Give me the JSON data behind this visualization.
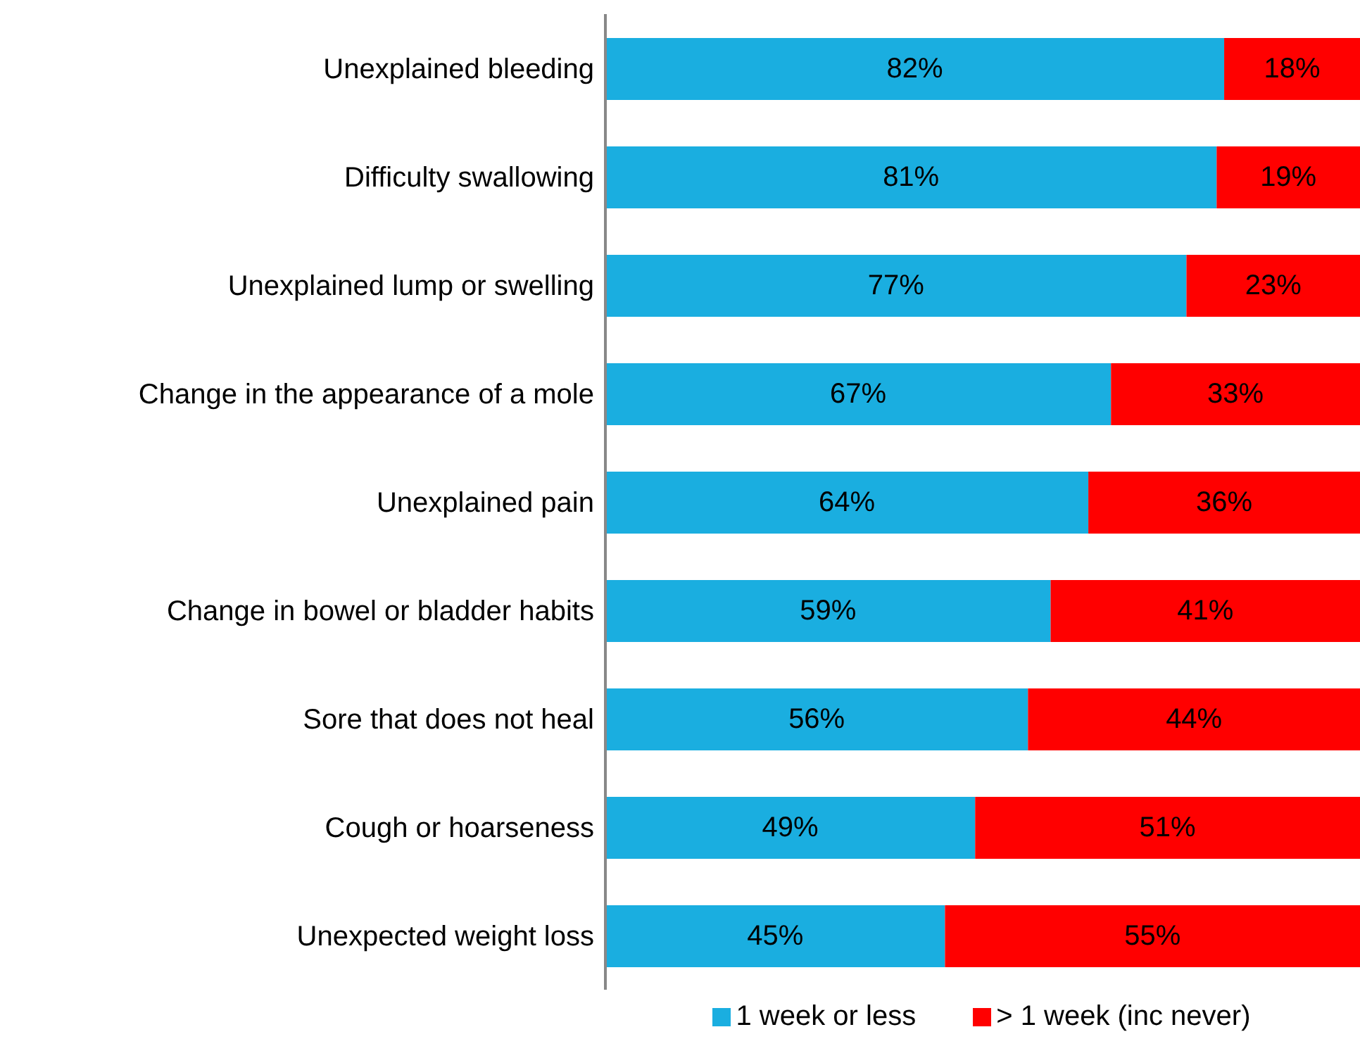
{
  "chart_data": {
    "type": "bar",
    "orientation": "horizontal",
    "stacked": true,
    "categories": [
      "Unexplained bleeding",
      "Difficulty swallowing",
      "Unexplained lump or swelling",
      "Change in the appearance  of a mole",
      "Unexplained pain",
      "Change in bowel or bladder habits",
      "Sore that does not heal",
      "Cough or hoarseness",
      "Unexpected weight loss"
    ],
    "series": [
      {
        "name": "1 week or less",
        "color": "#1aaee0",
        "values": [
          82,
          81,
          77,
          67,
          64,
          59,
          56,
          49,
          45
        ],
        "value_labels": [
          "82%",
          "81%",
          "77%",
          "67%",
          "64%",
          "59%",
          "56%",
          "49%",
          "45%"
        ]
      },
      {
        "name": "> 1 week (inc never)",
        "color": "#ff0000",
        "values": [
          18,
          19,
          23,
          33,
          36,
          41,
          44,
          51,
          55
        ],
        "value_labels": [
          "18%",
          "19%",
          "23%",
          "33%",
          "36%",
          "41%",
          "44%",
          "51%",
          "55%"
        ]
      }
    ],
    "xlim": [
      0,
      100
    ],
    "tick_labels": "y",
    "grid": false,
    "legend": "bottom"
  }
}
